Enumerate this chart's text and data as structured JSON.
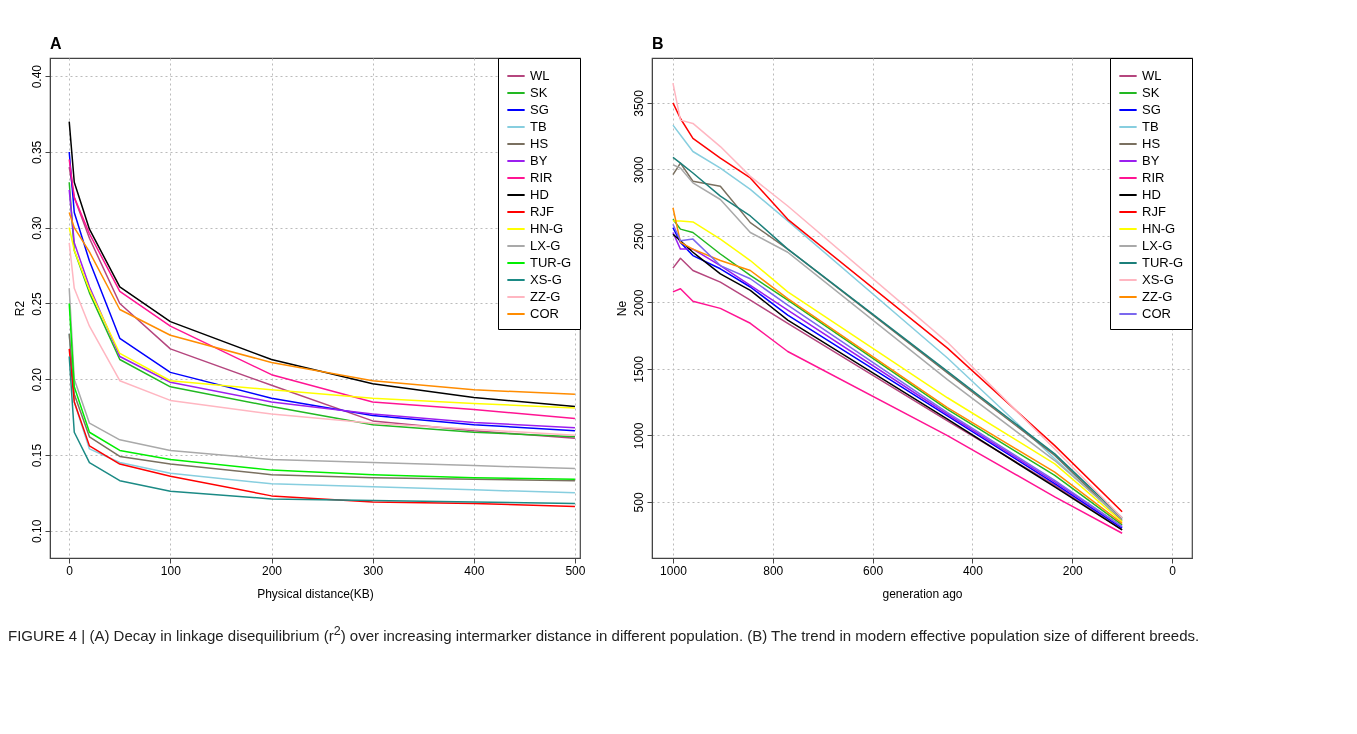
{
  "chart_data": [
    {
      "type": "line",
      "title": "A",
      "xlabel": "Physical distance(KB)",
      "ylabel": "R2",
      "x": [
        0,
        5,
        20,
        50,
        100,
        200,
        300,
        400,
        500
      ],
      "xlim": [
        -19,
        505
      ],
      "ylim": [
        0.082,
        0.412
      ],
      "xticks": [
        0,
        100,
        200,
        300,
        400,
        500
      ],
      "yticks": [
        {
          "value": 0.1,
          "label": "0.10"
        },
        0.15,
        {
          "value": 0.2,
          "label": "0.20"
        },
        0.25,
        {
          "value": 0.3,
          "label": "0.30"
        },
        0.35,
        {
          "value": 0.4,
          "label": "0.40"
        }
      ],
      "grid": true,
      "legend": "top right",
      "line_style": "solid",
      "annotations": [
        "FIGURE 4 | (A) Decay in linkage disequilibrium (r$^{2}$) over increasing intermarker distance in different population. (B) The trend in modern effective population size of different breeds."
      ],
      "series": [
        {
          "name": "WL",
          "color": "#b5467e",
          "values": [
            0.34,
            0.32,
            0.293,
            0.25,
            0.22,
            0.196,
            0.1725,
            0.166,
            0.161
          ]
        },
        {
          "name": "SK",
          "color": "#22b822",
          "values": [
            0.33,
            0.285,
            0.257,
            0.213,
            0.195,
            0.182,
            0.17,
            0.165,
            0.162
          ]
        },
        {
          "name": "SG",
          "color": "#0000ff",
          "values": [
            0.35,
            0.31,
            0.278,
            0.227,
            0.2045,
            0.1875,
            0.176,
            0.17,
            0.166
          ]
        },
        {
          "name": "TB",
          "color": "#87cedf",
          "values": [
            0.23,
            0.185,
            0.154,
            0.145,
            0.138,
            0.131,
            0.129,
            0.127,
            0.125
          ]
        },
        {
          "name": "HS",
          "color": "#7a7060",
          "values": [
            0.23,
            0.19,
            0.162,
            0.149,
            0.144,
            0.137,
            0.135,
            0.134,
            0.133
          ]
        },
        {
          "name": "BY",
          "color": "#9b1fef",
          "values": [
            0.325,
            0.29,
            0.261,
            0.215,
            0.198,
            0.185,
            0.177,
            0.1715,
            0.168
          ]
        },
        {
          "name": "RIR",
          "color": "#ff1493",
          "values": [
            0.345,
            0.32,
            0.296,
            0.258,
            0.235,
            0.203,
            0.185,
            0.18,
            0.174
          ]
        },
        {
          "name": "HD",
          "color": "#000000",
          "values": [
            0.37,
            0.33,
            0.299,
            0.261,
            0.238,
            0.213,
            0.197,
            0.188,
            0.182
          ]
        },
        {
          "name": "RJF",
          "color": "#ff0000",
          "values": [
            0.22,
            0.185,
            0.156,
            0.144,
            0.136,
            0.123,
            0.119,
            0.118,
            0.116
          ]
        },
        {
          "name": "HN-G",
          "color": "#ffff00",
          "values": [
            0.3,
            0.285,
            0.259,
            0.217,
            0.199,
            0.193,
            0.1875,
            0.184,
            0.181
          ]
        },
        {
          "name": "LX-G",
          "color": "#a9a9a9",
          "values": [
            0.26,
            0.2,
            0.171,
            0.16,
            0.153,
            0.147,
            0.145,
            0.143,
            0.141
          ]
        },
        {
          "name": "TUR-G",
          "color": "#00ee00",
          "values": [
            0.25,
            0.195,
            0.165,
            0.153,
            0.147,
            0.14,
            0.137,
            0.135,
            0.134
          ]
        },
        {
          "name": "XS-G",
          "color": "#1b8a85",
          "values": [
            0.215,
            0.165,
            0.145,
            0.133,
            0.126,
            0.121,
            0.12,
            0.119,
            0.118
          ]
        },
        {
          "name": "ZZ-G",
          "color": "#ffb6c1",
          "values": [
            0.29,
            0.26,
            0.235,
            0.199,
            0.186,
            0.177,
            0.171,
            0.167,
            0.163
          ]
        },
        {
          "name": "COR",
          "color": "#ff8c00",
          "values": [
            0.31,
            0.3,
            0.284,
            0.246,
            0.229,
            0.211,
            0.199,
            0.193,
            0.19
          ]
        }
      ]
    },
    {
      "type": "line",
      "title": "B",
      "xlabel": "generation ago",
      "ylabel": "Ne",
      "x": [
        1000,
        985,
        960,
        905,
        845,
        770,
        450,
        235,
        100
      ],
      "xlim": [
        1042,
        -40
      ],
      "ylim": [
        78,
        3838
      ],
      "xticks": [
        1000,
        800,
        600,
        400,
        200,
        0
      ],
      "yticks": [
        500,
        1000,
        1500,
        2000,
        2500,
        3000,
        3500
      ],
      "grid": true,
      "legend": "top right",
      "line_style": "solid",
      "series": [
        {
          "name": "WL",
          "color": "#b5467e",
          "values": [
            2258,
            2332,
            2240,
            2153,
            2017,
            1843,
            1109,
            625,
            289
          ]
        },
        {
          "name": "SK",
          "color": "#22b822",
          "values": [
            2625,
            2551,
            2526,
            2364,
            2203,
            2017,
            1196,
            699,
            327
          ]
        },
        {
          "name": "SG",
          "color": "#0000ff",
          "values": [
            2563,
            2451,
            2352,
            2253,
            2116,
            1905,
            1146,
            637,
            302
          ]
        },
        {
          "name": "TB",
          "color": "#87cedf",
          "values": [
            3333,
            3259,
            3135,
            3010,
            2850,
            2613,
            1582,
            824,
            360
          ]
        },
        {
          "name": "HS",
          "color": "#7a7060",
          "values": [
            2961,
            3048,
            2911,
            2874,
            2600,
            2401,
            1470,
            850,
            360
          ]
        },
        {
          "name": "BY",
          "color": "#9b1fef",
          "values": [
            2526,
            2401,
            2401,
            2277,
            2128,
            1942,
            1159,
            650,
            314
          ]
        },
        {
          "name": "RIR",
          "color": "#ff1493",
          "values": [
            2079,
            2103,
            2009,
            1955,
            1843,
            1631,
            998,
            538,
            264
          ]
        },
        {
          "name": "HD",
          "color": "#000000",
          "values": [
            2513,
            2464,
            2377,
            2215,
            2091,
            1867,
            1122,
            612,
            289
          ]
        },
        {
          "name": "RJF",
          "color": "#ff0000",
          "values": [
            3500,
            3383,
            3234,
            3085,
            2936,
            2625,
            1656,
            923,
            426
          ]
        },
        {
          "name": "HN-G",
          "color": "#ffff00",
          "values": [
            2613,
            2613,
            2605,
            2476,
            2315,
            2079,
            1283,
            786,
            351
          ]
        },
        {
          "name": "LX-G",
          "color": "#a9a9a9",
          "values": [
            3035,
            3010,
            2899,
            2774,
            2526,
            2377,
            1420,
            811,
            370
          ]
        },
        {
          "name": "TUR-G",
          "color": "#1b7f7a",
          "values": [
            3090,
            3048,
            2973,
            2799,
            2650,
            2401,
            1482,
            861,
            380
          ]
        },
        {
          "name": "XS-G",
          "color": "#ffb6c1",
          "values": [
            3649,
            3371,
            3346,
            3172,
            2948,
            2725,
            1700,
            898,
            380
          ]
        },
        {
          "name": "ZZ-G",
          "color": "#ff8c00",
          "values": [
            2712,
            2451,
            2401,
            2315,
            2240,
            2029,
            1209,
            724,
            339
          ]
        },
        {
          "name": "COR",
          "color": "#7b68ee",
          "values": [
            2588,
            2464,
            2476,
            2277,
            2178,
            1979,
            1171,
            662,
            314
          ]
        }
      ]
    }
  ]
}
